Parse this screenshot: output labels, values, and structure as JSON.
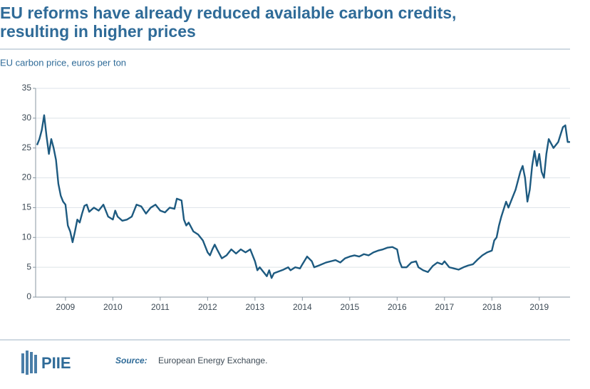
{
  "chart_data": {
    "type": "line",
    "title": "EU reforms have already reduced available carbon credits,",
    "title_line2": "resulting in higher prices",
    "subtitle": "EU carbon price, euros per ton",
    "x": [
      2008.4,
      2008.45,
      2008.5,
      2008.55,
      2008.6,
      2008.65,
      2008.7,
      2008.75,
      2008.8,
      2008.85,
      2008.9,
      2008.95,
      2009.0,
      2009.05,
      2009.1,
      2009.15,
      2009.2,
      2009.25,
      2009.3,
      2009.35,
      2009.4,
      2009.45,
      2009.5,
      2009.6,
      2009.7,
      2009.8,
      2009.9,
      2010.0,
      2010.05,
      2010.1,
      2010.2,
      2010.3,
      2010.4,
      2010.5,
      2010.6,
      2010.7,
      2010.8,
      2010.9,
      2011.0,
      2011.1,
      2011.2,
      2011.3,
      2011.35,
      2011.45,
      2011.5,
      2011.55,
      2011.6,
      2011.7,
      2011.8,
      2011.9,
      2012.0,
      2012.05,
      2012.1,
      2012.15,
      2012.2,
      2012.3,
      2012.4,
      2012.5,
      2012.6,
      2012.7,
      2012.8,
      2012.9,
      2013.0,
      2013.05,
      2013.1,
      2013.2,
      2013.25,
      2013.3,
      2013.35,
      2013.4,
      2013.5,
      2013.6,
      2013.7,
      2013.75,
      2013.85,
      2013.95,
      2014.0,
      2014.1,
      2014.2,
      2014.25,
      2014.35,
      2014.5,
      2014.6,
      2014.7,
      2014.8,
      2014.9,
      2015.0,
      2015.1,
      2015.2,
      2015.3,
      2015.4,
      2015.5,
      2015.6,
      2015.7,
      2015.8,
      2015.9,
      2016.0,
      2016.05,
      2016.1,
      2016.2,
      2016.3,
      2016.4,
      2016.45,
      2016.55,
      2016.65,
      2016.75,
      2016.85,
      2016.95,
      2017.0,
      2017.1,
      2017.2,
      2017.3,
      2017.4,
      2017.5,
      2017.6,
      2017.7,
      2017.8,
      2017.9,
      2018.0,
      2018.05,
      2018.1,
      2018.15,
      2018.2,
      2018.3,
      2018.35,
      2018.4,
      2018.5,
      2018.6,
      2018.65,
      2018.7,
      2018.75,
      2018.8,
      2018.85,
      2018.9,
      2018.95,
      2019.0,
      2019.05,
      2019.1,
      2019.15,
      2019.2,
      2019.3,
      2019.4,
      2019.5,
      2019.55,
      2019.6,
      2019.65
    ],
    "series": [
      {
        "name": "EU carbon price",
        "color": "#1d5a80",
        "values": [
          25.5,
          26.5,
          28,
          30.5,
          27,
          24,
          26.5,
          25,
          23,
          19,
          17,
          16,
          15.5,
          12,
          11,
          9.2,
          11,
          13,
          12.5,
          14,
          15.3,
          15.5,
          14.3,
          15,
          14.5,
          15.5,
          13.5,
          13,
          14.5,
          13.5,
          12.8,
          13,
          13.5,
          15.5,
          15.2,
          14,
          15,
          15.5,
          14.5,
          14.2,
          15,
          14.8,
          16.5,
          16.2,
          13,
          12,
          12.5,
          11,
          10.5,
          9.5,
          7.5,
          7,
          8,
          8.8,
          8,
          6.5,
          7,
          8,
          7.3,
          8,
          7.5,
          8,
          6,
          4.5,
          5,
          4,
          3.5,
          4.5,
          3.2,
          4,
          4.3,
          4.6,
          5,
          4.5,
          5,
          4.8,
          5.5,
          6.8,
          6,
          5,
          5.3,
          5.8,
          6,
          6.2,
          5.8,
          6.5,
          6.8,
          7,
          6.8,
          7.2,
          7,
          7.5,
          7.8,
          8,
          8.3,
          8.4,
          8,
          6,
          5,
          5,
          5.8,
          6,
          5,
          4.5,
          4.2,
          5.2,
          5.8,
          5.5,
          6,
          5,
          4.8,
          4.6,
          5,
          5.3,
          5.5,
          6.3,
          7,
          7.5,
          7.8,
          9.5,
          10,
          12,
          13.5,
          16,
          15,
          16,
          18,
          21,
          22,
          20,
          16,
          18,
          22,
          24.5,
          22,
          24,
          21,
          20,
          24,
          26.5,
          25,
          26,
          28.5,
          28.8,
          26,
          26
        ]
      }
    ],
    "xlim": [
      2008.37,
      2019.65
    ],
    "xticks": [
      2009,
      2010,
      2011,
      2012,
      2013,
      2014,
      2015,
      2016,
      2017,
      2018,
      2019
    ],
    "ylim": [
      0,
      35
    ],
    "yticks": [
      0,
      5,
      10,
      15,
      20,
      25,
      30,
      35
    ],
    "grid": true,
    "logo": "PIIE",
    "source_label": "Source:",
    "source": "European Energy Exchange."
  }
}
